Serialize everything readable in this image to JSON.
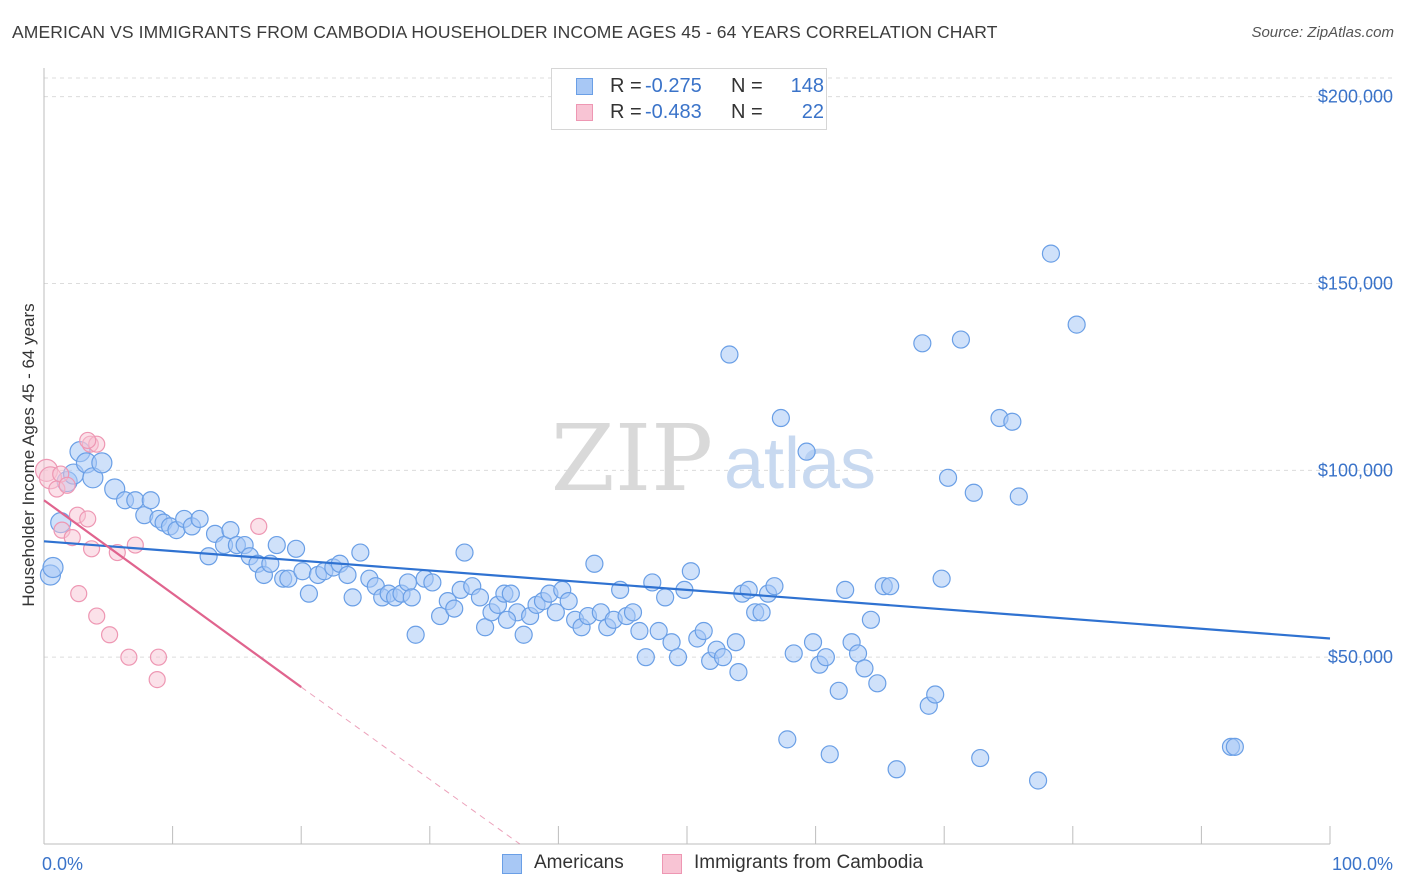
{
  "title": "AMERICAN VS IMMIGRANTS FROM CAMBODIA HOUSEHOLDER INCOME AGES 45 - 64 YEARS CORRELATION CHART",
  "source": "Source: ZipAtlas.com",
  "watermark": {
    "zip": "ZIP",
    "atlas": "atlas"
  },
  "legend_top": [
    {
      "r_label": "R =",
      "r_value": "-0.275",
      "n_label": "N =",
      "n_value": "148",
      "color": "#7aaef2"
    },
    {
      "r_label": "R =",
      "r_value": "-0.483",
      "n_label": "N =",
      "n_value": "22",
      "color": "#f4a6bf"
    }
  ],
  "legend_bottom": [
    {
      "label": "Americans",
      "color": "#7aaef2"
    },
    {
      "label": "Immigrants from Cambodia",
      "color": "#f4a6bf"
    }
  ],
  "colors": {
    "americans_fill": "#a8c8f5",
    "americans_stroke": "#6a9fe6",
    "americans_line": "#2f72d1",
    "cambodia_fill": "#f8c4d4",
    "cambodia_stroke": "#ee97b3",
    "cambodia_line": "#e0648e",
    "axis_label": "#3a73c9",
    "grid": "#dcdcdc"
  },
  "chart_data": {
    "type": "scatter",
    "xlabel": "",
    "ylabel": "Householder Income Ages 45 - 64 years",
    "xlim": [
      0,
      100
    ],
    "ylim": [
      0,
      205000
    ],
    "x_tick_labels": [
      "0.0%",
      "100.0%"
    ],
    "y_ticks": [
      50000,
      100000,
      150000,
      200000
    ],
    "y_tick_labels": [
      "$50,000",
      "$100,000",
      "$150,000",
      "$200,000"
    ],
    "grid": true,
    "legend_position": "top-center",
    "series": [
      {
        "name": "Americans",
        "points": [
          [
            0.5,
            72000
          ],
          [
            0.7,
            74000
          ],
          [
            1.3,
            86000
          ],
          [
            1.8,
            97000
          ],
          [
            2.3,
            99000
          ],
          [
            2.8,
            105000
          ],
          [
            3.3,
            102000
          ],
          [
            3.8,
            98000
          ],
          [
            4.5,
            102000
          ],
          [
            5.5,
            95000
          ],
          [
            6.3,
            92000
          ],
          [
            7.1,
            92000
          ],
          [
            7.8,
            88000
          ],
          [
            8.3,
            92000
          ],
          [
            8.9,
            87000
          ],
          [
            9.3,
            86000
          ],
          [
            9.8,
            85000
          ],
          [
            10.3,
            84000
          ],
          [
            10.9,
            87000
          ],
          [
            11.5,
            85000
          ],
          [
            12.1,
            87000
          ],
          [
            12.8,
            77000
          ],
          [
            13.3,
            83000
          ],
          [
            14.0,
            80000
          ],
          [
            14.5,
            84000
          ],
          [
            15.0,
            80000
          ],
          [
            15.6,
            80000
          ],
          [
            16.0,
            77000
          ],
          [
            16.6,
            75000
          ],
          [
            17.1,
            72000
          ],
          [
            17.6,
            75000
          ],
          [
            18.1,
            80000
          ],
          [
            18.6,
            71000
          ],
          [
            19.0,
            71000
          ],
          [
            19.6,
            79000
          ],
          [
            20.1,
            73000
          ],
          [
            20.6,
            67000
          ],
          [
            21.3,
            72000
          ],
          [
            21.8,
            73000
          ],
          [
            22.5,
            74000
          ],
          [
            23.0,
            75000
          ],
          [
            23.6,
            72000
          ],
          [
            24.0,
            66000
          ],
          [
            24.6,
            78000
          ],
          [
            25.3,
            71000
          ],
          [
            25.8,
            69000
          ],
          [
            26.3,
            66000
          ],
          [
            26.8,
            67000
          ],
          [
            27.3,
            66000
          ],
          [
            27.8,
            67000
          ],
          [
            28.3,
            70000
          ],
          [
            28.6,
            66000
          ],
          [
            28.9,
            56000
          ],
          [
            29.6,
            71000
          ],
          [
            30.2,
            70000
          ],
          [
            30.8,
            61000
          ],
          [
            31.4,
            65000
          ],
          [
            31.9,
            63000
          ],
          [
            32.4,
            68000
          ],
          [
            32.7,
            78000
          ],
          [
            33.3,
            69000
          ],
          [
            33.9,
            66000
          ],
          [
            34.3,
            58000
          ],
          [
            34.8,
            62000
          ],
          [
            35.3,
            64000
          ],
          [
            35.8,
            67000
          ],
          [
            36.3,
            67000
          ],
          [
            36.8,
            62000
          ],
          [
            37.3,
            56000
          ],
          [
            37.8,
            61000
          ],
          [
            38.3,
            64000
          ],
          [
            38.8,
            65000
          ],
          [
            39.3,
            67000
          ],
          [
            39.8,
            62000
          ],
          [
            40.3,
            68000
          ],
          [
            40.8,
            65000
          ],
          [
            41.3,
            60000
          ],
          [
            41.8,
            58000
          ],
          [
            42.3,
            61000
          ],
          [
            42.8,
            75000
          ],
          [
            43.3,
            62000
          ],
          [
            43.8,
            58000
          ],
          [
            44.3,
            60000
          ],
          [
            44.8,
            68000
          ],
          [
            45.3,
            61000
          ],
          [
            45.8,
            62000
          ],
          [
            46.3,
            57000
          ],
          [
            46.8,
            50000
          ],
          [
            47.3,
            70000
          ],
          [
            47.8,
            57000
          ],
          [
            48.3,
            66000
          ],
          [
            48.8,
            54000
          ],
          [
            49.3,
            50000
          ],
          [
            49.8,
            68000
          ],
          [
            50.3,
            73000
          ],
          [
            50.8,
            55000
          ],
          [
            51.3,
            57000
          ],
          [
            51.8,
            49000
          ],
          [
            52.3,
            52000
          ],
          [
            52.8,
            50000
          ],
          [
            53.3,
            131000
          ],
          [
            53.8,
            54000
          ],
          [
            54.3,
            67000
          ],
          [
            54.8,
            68000
          ],
          [
            55.3,
            62000
          ],
          [
            55.8,
            62000
          ],
          [
            56.3,
            67000
          ],
          [
            56.8,
            69000
          ],
          [
            57.3,
            114000
          ],
          [
            57.8,
            28000
          ],
          [
            58.3,
            51000
          ],
          [
            59.3,
            105000
          ],
          [
            59.8,
            54000
          ],
          [
            60.3,
            48000
          ],
          [
            60.8,
            50000
          ],
          [
            61.1,
            24000
          ],
          [
            61.8,
            41000
          ],
          [
            62.3,
            68000
          ],
          [
            62.8,
            54000
          ],
          [
            63.3,
            51000
          ],
          [
            63.8,
            47000
          ],
          [
            64.3,
            60000
          ],
          [
            64.8,
            43000
          ],
          [
            65.3,
            69000
          ],
          [
            65.8,
            69000
          ],
          [
            66.3,
            20000
          ],
          [
            68.3,
            134000
          ],
          [
            68.8,
            37000
          ],
          [
            69.3,
            40000
          ],
          [
            69.8,
            71000
          ],
          [
            70.3,
            98000
          ],
          [
            71.3,
            135000
          ],
          [
            72.3,
            94000
          ],
          [
            72.8,
            23000
          ],
          [
            74.3,
            114000
          ],
          [
            75.3,
            113000
          ],
          [
            75.8,
            93000
          ],
          [
            77.3,
            17000
          ],
          [
            78.3,
            158000
          ],
          [
            80.3,
            139000
          ],
          [
            92.3,
            26000
          ],
          [
            92.6,
            26000
          ],
          [
            36.0,
            60000
          ],
          [
            54.0,
            46000
          ]
        ],
        "trend": {
          "x": [
            0,
            100
          ],
          "y": [
            81000,
            55000
          ]
        }
      },
      {
        "name": "Immigrants from Cambodia",
        "points": [
          [
            0.2,
            100000
          ],
          [
            0.5,
            98000
          ],
          [
            1.0,
            95000
          ],
          [
            1.3,
            99000
          ],
          [
            1.8,
            96000
          ],
          [
            1.4,
            84000
          ],
          [
            2.2,
            82000
          ],
          [
            2.6,
            88000
          ],
          [
            3.4,
            87000
          ],
          [
            3.6,
            107000
          ],
          [
            3.7,
            79000
          ],
          [
            4.1,
            107000
          ],
          [
            2.7,
            67000
          ],
          [
            4.1,
            61000
          ],
          [
            5.1,
            56000
          ],
          [
            5.7,
            78000
          ],
          [
            6.6,
            50000
          ],
          [
            7.1,
            80000
          ],
          [
            8.9,
            50000
          ],
          [
            8.8,
            44000
          ],
          [
            16.7,
            85000
          ],
          [
            3.4,
            108000
          ]
        ],
        "trend": {
          "x": [
            0,
            20
          ],
          "y": [
            92000,
            42000
          ]
        },
        "trend_dashed": {
          "x": [
            20,
            37
          ],
          "y": [
            42000,
            0
          ]
        }
      }
    ]
  }
}
